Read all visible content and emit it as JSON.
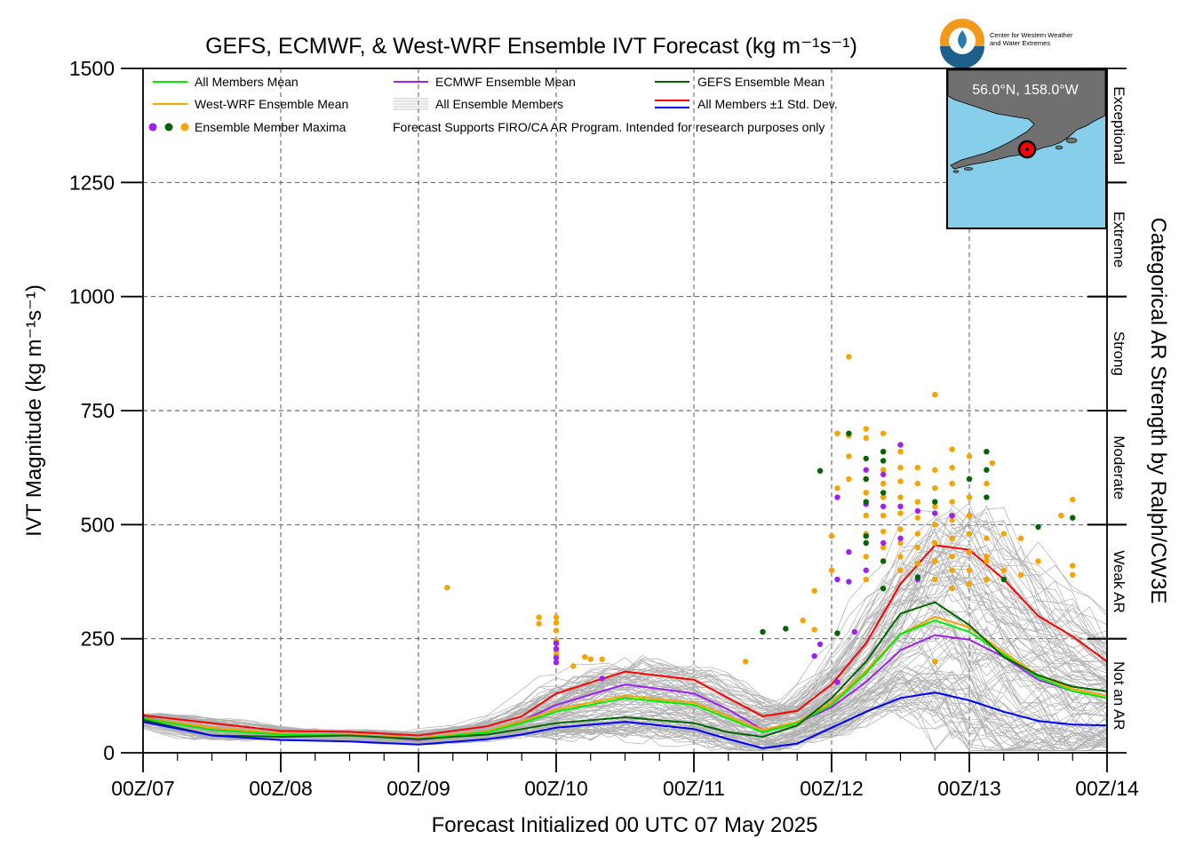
{
  "chart_data": {
    "type": "line",
    "title": "GEFS, ECMWF, & West-WRF Ensemble IVT Forecast (kg m⁻¹s⁻¹)",
    "xlabel": "Forecast Initialized 00 UTC 07 May 2025",
    "ylabel": "IVT Magnitude (kg m⁻¹s⁻¹)",
    "right_ylabel": "Categorical AR Strength by Ralph/CW3E",
    "logo_text": [
      "Center for Western Weather",
      "and Water Extremes"
    ],
    "ylim": [
      0,
      1500
    ],
    "xlim_hours": [
      0,
      168
    ],
    "x_ticks": [
      "00Z/07",
      "00Z/08",
      "00Z/09",
      "00Z/10",
      "00Z/11",
      "00Z/12",
      "00Z/13",
      "00Z/14"
    ],
    "y_ticks": [
      0,
      250,
      500,
      750,
      1000,
      1250,
      1500
    ],
    "grid": true,
    "legend_placement": "top-left",
    "legend": {
      "all_members_mean": "All Members Mean",
      "westwrf_mean": "West-WRF Ensemble Mean",
      "maxima": "Ensemble Member Maxima",
      "ecmwf_mean": "ECMWF Ensemble Mean",
      "all_members": "All Ensemble Members",
      "note": "Forecast Supports FIRO/CA AR Program. Intended for research purposes only",
      "gefs_mean": "GEFS Ensemble Mean",
      "std_dev": "All Members ±1 Std. Dev."
    },
    "categories": [
      {
        "label": "Exceptional",
        "range": [
          1250,
          1500
        ]
      },
      {
        "label": "Extreme",
        "range": [
          1000,
          1250
        ]
      },
      {
        "label": "Strong",
        "range": [
          750,
          1000
        ]
      },
      {
        "label": "Moderate",
        "range": [
          500,
          750
        ]
      },
      {
        "label": "Weak AR",
        "range": [
          250,
          500
        ]
      },
      {
        "label": "Not an AR",
        "range": [
          0,
          250
        ]
      }
    ],
    "inset_map": {
      "label": "56.0°N, 158.0°W",
      "marker": "red dot with black ring",
      "ocean_color": "#87ceeb",
      "land_color": "#707070"
    },
    "colors": {
      "all_mean": "#00ee00",
      "westwrf": "#f4a300",
      "ecmwf": "#a020f0",
      "gefs": "#006400",
      "std_upper": "#ff0000",
      "std_lower": "#0000ff",
      "members": "#b0b0b0"
    },
    "series": [
      {
        "name": "All Members +1 Std. Dev.",
        "color": "#ff0000",
        "x": [
          0,
          12,
          24,
          36,
          48,
          60,
          66,
          72,
          84,
          96,
          102,
          108,
          114,
          120,
          126,
          132,
          138,
          144,
          150,
          156,
          162,
          168
        ],
        "y": [
          82,
          65,
          48,
          46,
          38,
          58,
          80,
          130,
          178,
          160,
          120,
          80,
          92,
          150,
          240,
          370,
          455,
          445,
          380,
          300,
          255,
          200
        ]
      },
      {
        "name": "ECMWF Ensemble Mean",
        "color": "#a020f0",
        "x": [
          0,
          12,
          24,
          36,
          48,
          60,
          66,
          72,
          84,
          96,
          102,
          108,
          114,
          120,
          126,
          132,
          138,
          144,
          150,
          156,
          162,
          168
        ],
        "y": [
          78,
          50,
          42,
          40,
          28,
          45,
          70,
          105,
          150,
          130,
          95,
          50,
          65,
          100,
          155,
          225,
          258,
          248,
          210,
          160,
          135,
          120
        ]
      },
      {
        "name": "West-WRF Ensemble Mean",
        "color": "#f4a300",
        "x": [
          0,
          12,
          24,
          36,
          48,
          60,
          66,
          72,
          84,
          96,
          102,
          108,
          114,
          120,
          126,
          132,
          138,
          144,
          150,
          156,
          162,
          168
        ],
        "y": [
          76,
          55,
          42,
          40,
          32,
          47,
          70,
          95,
          125,
          110,
          80,
          50,
          68,
          110,
          180,
          260,
          298,
          275,
          220,
          170,
          140,
          125
        ]
      },
      {
        "name": "All Members Mean",
        "color": "#00ee00",
        "x": [
          0,
          12,
          24,
          36,
          48,
          60,
          66,
          72,
          84,
          96,
          102,
          108,
          114,
          120,
          126,
          132,
          138,
          144,
          150,
          156,
          162,
          168
        ],
        "y": [
          75,
          50,
          40,
          38,
          30,
          45,
          65,
          90,
          120,
          105,
          75,
          45,
          65,
          105,
          175,
          260,
          290,
          265,
          215,
          165,
          135,
          120
        ]
      },
      {
        "name": "GEFS Ensemble Mean",
        "color": "#006400",
        "x": [
          0,
          12,
          24,
          36,
          48,
          60,
          66,
          72,
          84,
          96,
          102,
          108,
          114,
          120,
          126,
          132,
          138,
          144,
          150,
          156,
          162,
          168
        ],
        "y": [
          72,
          38,
          35,
          38,
          30,
          40,
          52,
          65,
          78,
          65,
          45,
          35,
          60,
          120,
          200,
          305,
          330,
          280,
          210,
          170,
          145,
          135
        ]
      },
      {
        "name": "All Members -1 Std. Dev.",
        "color": "#0000ff",
        "x": [
          0,
          12,
          24,
          36,
          48,
          60,
          66,
          72,
          84,
          96,
          102,
          108,
          114,
          120,
          126,
          132,
          138,
          144,
          150,
          156,
          162,
          168
        ],
        "y": [
          68,
          38,
          28,
          25,
          18,
          30,
          40,
          55,
          68,
          52,
          30,
          10,
          20,
          55,
          90,
          120,
          132,
          115,
          90,
          70,
          62,
          60
        ]
      }
    ],
    "maxima": {
      "westwrf": [
        [
          72,
          297
        ],
        [
          72,
          285
        ],
        [
          72,
          245
        ],
        [
          72,
          228
        ],
        [
          72,
          222
        ],
        [
          72,
          215
        ],
        [
          75,
          190
        ],
        [
          77,
          210
        ],
        [
          78,
          205
        ],
        [
          80,
          205
        ],
        [
          72,
          268
        ],
        [
          69,
          297
        ],
        [
          69,
          283
        ],
        [
          53,
          362
        ],
        [
          105,
          200
        ],
        [
          117,
          270
        ],
        [
          115,
          290
        ],
        [
          117,
          355
        ],
        [
          121,
          580
        ],
        [
          120,
          475
        ],
        [
          120,
          400
        ],
        [
          121,
          700
        ],
        [
          123,
          868
        ],
        [
          123,
          695
        ],
        [
          123,
          650
        ],
        [
          123,
          600
        ],
        [
          126,
          710
        ],
        [
          126,
          690
        ],
        [
          126,
          600
        ],
        [
          126,
          570
        ],
        [
          126,
          520
        ],
        [
          126,
          480
        ],
        [
          126,
          430
        ],
        [
          126,
          380
        ],
        [
          129,
          700
        ],
        [
          129,
          660
        ],
        [
          129,
          620
        ],
        [
          129,
          590
        ],
        [
          129,
          560
        ],
        [
          129,
          520
        ],
        [
          129,
          485
        ],
        [
          129,
          450
        ],
        [
          129,
          420
        ],
        [
          132,
          660
        ],
        [
          132,
          625
        ],
        [
          132,
          595
        ],
        [
          132,
          560
        ],
        [
          132,
          525
        ],
        [
          132,
          490
        ],
        [
          132,
          460
        ],
        [
          132,
          430
        ],
        [
          132,
          400
        ],
        [
          135,
          625
        ],
        [
          135,
          590
        ],
        [
          135,
          550
        ],
        [
          135,
          515
        ],
        [
          135,
          480
        ],
        [
          135,
          450
        ],
        [
          135,
          415
        ],
        [
          138,
          785
        ],
        [
          138,
          620
        ],
        [
          138,
          580
        ],
        [
          138,
          540
        ],
        [
          138,
          500
        ],
        [
          138,
          460
        ],
        [
          138,
          420
        ],
        [
          138,
          380
        ],
        [
          141,
          665
        ],
        [
          141,
          625
        ],
        [
          141,
          590
        ],
        [
          141,
          550
        ],
        [
          141,
          510
        ],
        [
          141,
          470
        ],
        [
          141,
          430
        ],
        [
          141,
          400
        ],
        [
          141,
          360
        ],
        [
          144,
          650
        ],
        [
          144,
          600
        ],
        [
          144,
          560
        ],
        [
          144,
          520
        ],
        [
          144,
          480
        ],
        [
          144,
          440
        ],
        [
          144,
          400
        ],
        [
          144,
          370
        ],
        [
          138,
          200
        ],
        [
          147,
          590
        ],
        [
          147,
          470
        ],
        [
          147,
          420
        ],
        [
          147,
          380
        ],
        [
          150,
          480
        ],
        [
          150,
          400
        ],
        [
          153,
          390
        ],
        [
          153,
          470
        ],
        [
          156,
          420
        ],
        [
          160,
          520
        ],
        [
          162,
          555
        ],
        [
          162,
          410
        ],
        [
          162,
          390
        ],
        [
          148,
          635
        ],
        [
          147,
          430
        ]
      ],
      "ecmwf": [
        [
          72,
          228
        ],
        [
          72,
          208
        ],
        [
          72,
          198
        ],
        [
          72,
          240
        ],
        [
          80,
          163
        ],
        [
          117,
          212
        ],
        [
          118,
          238
        ],
        [
          121,
          380
        ],
        [
          124,
          265
        ],
        [
          121,
          155
        ],
        [
          121,
          560
        ],
        [
          126,
          620
        ],
        [
          126,
          545
        ],
        [
          126,
          400
        ],
        [
          129,
          610
        ],
        [
          129,
          540
        ],
        [
          129,
          460
        ],
        [
          132,
          675
        ],
        [
          132,
          540
        ],
        [
          132,
          470
        ],
        [
          135,
          530
        ],
        [
          138,
          525
        ],
        [
          141,
          520
        ],
        [
          123,
          375
        ],
        [
          123,
          440
        ],
        [
          135,
          380
        ]
      ],
      "gefs": [
        [
          108,
          265
        ],
        [
          112,
          272
        ],
        [
          118,
          618
        ],
        [
          123,
          700
        ],
        [
          126,
          645
        ],
        [
          126,
          600
        ],
        [
          126,
          550
        ],
        [
          126,
          475
        ],
        [
          126,
          460
        ],
        [
          129,
          660
        ],
        [
          129,
          640
        ],
        [
          129,
          570
        ],
        [
          129,
          360
        ],
        [
          135,
          385
        ],
        [
          138,
          550
        ],
        [
          144,
          600
        ],
        [
          147,
          560
        ],
        [
          147,
          620
        ],
        [
          150,
          380
        ],
        [
          156,
          495
        ],
        [
          162,
          515
        ],
        [
          121,
          262
        ],
        [
          147,
          660
        ],
        [
          129,
          420
        ]
      ]
    }
  }
}
